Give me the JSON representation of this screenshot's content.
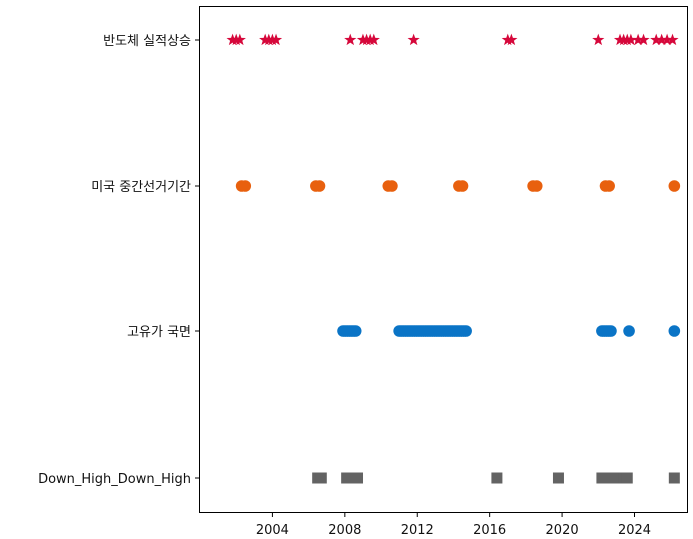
{
  "chart_data": {
    "type": "scatter",
    "title": "",
    "xlabel": "",
    "ylabel": "",
    "xlim": [
      2000.0,
      2026.9
    ],
    "x_ticks": [
      {
        "value": 2004,
        "label": "2004"
      },
      {
        "value": 2008,
        "label": "2008"
      },
      {
        "value": 2012,
        "label": "2012"
      },
      {
        "value": 2016,
        "label": "2016"
      },
      {
        "value": 2020,
        "label": "2020"
      },
      {
        "value": 2024,
        "label": "2024"
      }
    ],
    "categories": [
      "반도체 실적상승",
      "미국 중간선거기간",
      "고유가 국면",
      "Down_High_Down_High"
    ],
    "grid": false,
    "series": [
      {
        "name": "반도체 실적상승",
        "marker": "star",
        "color": "#d6083b",
        "x": [
          2001.8,
          2002.0,
          2002.2,
          2003.6,
          2003.8,
          2004.0,
          2004.2,
          2008.3,
          2009.0,
          2009.2,
          2009.4,
          2009.6,
          2011.8,
          2017.0,
          2017.2,
          2022.0,
          2023.2,
          2023.4,
          2023.6,
          2023.8,
          2024.2,
          2024.5,
          2025.2,
          2025.5,
          2025.8,
          2026.1
        ]
      },
      {
        "name": "미국 중간선거기간",
        "marker": "circle",
        "color": "#e8600e",
        "x": [
          2002.3,
          2002.5,
          2006.4,
          2006.6,
          2010.4,
          2010.6,
          2014.3,
          2014.5,
          2018.4,
          2018.6,
          2022.4,
          2022.6,
          2026.2
        ]
      },
      {
        "name": "고유가 국면",
        "marker": "circle",
        "color": "#0a74c6",
        "x": [
          2007.9,
          2008.0,
          2008.1,
          2008.2,
          2008.3,
          2008.4,
          2008.5,
          2008.6,
          2011.0,
          2011.1,
          2011.2,
          2011.3,
          2011.4,
          2011.5,
          2011.6,
          2011.7,
          2011.8,
          2011.9,
          2012.0,
          2012.1,
          2012.2,
          2012.3,
          2012.4,
          2012.5,
          2012.6,
          2012.7,
          2012.8,
          2012.9,
          2013.0,
          2013.1,
          2013.2,
          2013.3,
          2013.4,
          2013.5,
          2013.6,
          2013.7,
          2013.8,
          2013.9,
          2014.0,
          2014.1,
          2014.2,
          2014.3,
          2014.4,
          2014.5,
          2014.6,
          2014.7,
          2022.2,
          2022.3,
          2022.4,
          2022.5,
          2022.6,
          2022.7,
          2023.7,
          2026.2
        ]
      },
      {
        "name": "Down_High_Down_High",
        "marker": "square",
        "color": "#636363",
        "x": [
          2006.5,
          2006.7,
          2008.1,
          2008.3,
          2008.5,
          2008.7,
          2016.4,
          2019.8,
          2022.2,
          2022.4,
          2022.6,
          2022.8,
          2023.0,
          2023.2,
          2023.4,
          2023.6,
          2026.2
        ]
      }
    ]
  }
}
